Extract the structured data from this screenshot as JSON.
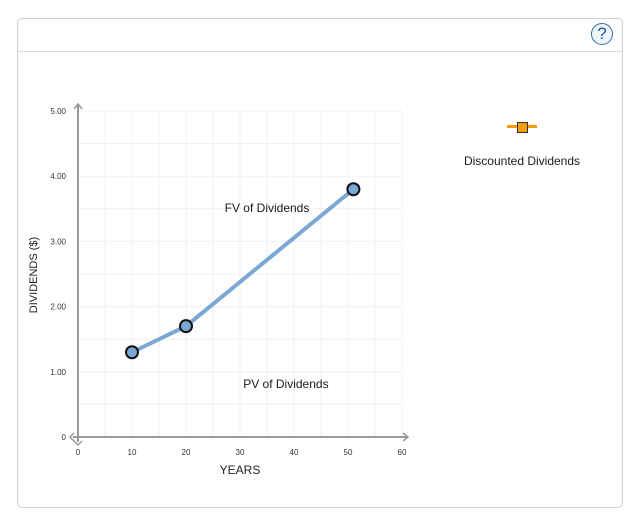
{
  "header": {
    "help_label": "?"
  },
  "chart_data": {
    "type": "line",
    "title": "",
    "xlabel": "YEARS",
    "ylabel": "DIVIDENDS ($)",
    "xlim": [
      0,
      60
    ],
    "ylim": [
      0,
      5
    ],
    "x_ticks": [
      "0",
      "10",
      "20",
      "30",
      "40",
      "50",
      "60"
    ],
    "y_ticks": [
      "0",
      "1.00",
      "2.00",
      "3.00",
      "4.00",
      "5.00"
    ],
    "grid": true,
    "series": [
      {
        "name": "Dividends",
        "color": "#7aa7d4",
        "x": [
          10,
          20,
          51
        ],
        "y": [
          1.3,
          1.7,
          3.8
        ]
      }
    ],
    "annotations": [
      {
        "text": "FV of Dividends",
        "x": 35,
        "y": 3.45
      },
      {
        "text": "PV of Dividends",
        "x": 38.5,
        "y": 0.75
      }
    ],
    "legend": [
      {
        "label": "Discounted Dividends",
        "color": "#f39c12",
        "marker": "square"
      }
    ]
  }
}
